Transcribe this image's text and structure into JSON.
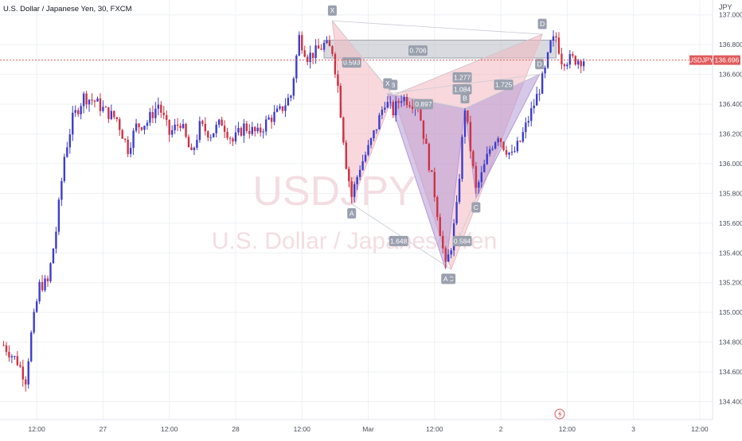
{
  "header": {
    "symbol_title": "U.S. Dollar / Japanese Yen, 30, FXCM"
  },
  "watermark": {
    "ticker": "USDJPY",
    "name": "U.S. Dollar / Japanese Yen"
  },
  "price_scale": {
    "currency": "JPY"
  },
  "last_price": {
    "symbol": "USDJPY",
    "value": "136.696",
    "price": 136.696
  },
  "colors": {
    "up": "#3d3dcc",
    "down": "#cc3344",
    "price_line": "#e05a5a",
    "grid": "#eef0f3",
    "pattern_fill_pink": "#f2b8bf",
    "pattern_fill_purple": "#b49ad6",
    "pattern_label": "#9aa0ae"
  },
  "chart_data": {
    "type": "candlestick",
    "title": "U.S. Dollar / Japanese Yen, 30, FXCM",
    "ylabel": "JPY",
    "ylim": [
      134.28,
      137.1
    ],
    "y_ticks": [
      "137.000",
      "136.800",
      "136.600",
      "136.400",
      "136.200",
      "136.000",
      "135.800",
      "135.600",
      "135.400",
      "135.200",
      "135.000",
      "134.800",
      "134.600",
      "134.400"
    ],
    "x_ticks": [
      "12:00",
      "27",
      "12:00",
      "28",
      "12:00",
      "Mar",
      "12:00",
      "2",
      "12:00",
      "3",
      "12:00"
    ],
    "bar_range": [
      0,
      210
    ],
    "x_tick_bars": [
      12,
      36,
      60,
      84,
      108,
      132,
      156,
      180,
      204,
      228,
      252
    ],
    "ohlc_anchors": [
      [
        0,
        134.78
      ],
      [
        5,
        134.67
      ],
      [
        8,
        134.55
      ],
      [
        10,
        134.85
      ],
      [
        13,
        135.18
      ],
      [
        16,
        135.2
      ],
      [
        19,
        135.55
      ],
      [
        22,
        136.05
      ],
      [
        25,
        136.3
      ],
      [
        29,
        136.45
      ],
      [
        33,
        136.42
      ],
      [
        37,
        136.35
      ],
      [
        41,
        136.3
      ],
      [
        45,
        136.1
      ],
      [
        48,
        136.25
      ],
      [
        52,
        136.28
      ],
      [
        56,
        136.4
      ],
      [
        60,
        136.2
      ],
      [
        64,
        136.28
      ],
      [
        68,
        136.05
      ],
      [
        71,
        136.25
      ],
      [
        75,
        136.2
      ],
      [
        79,
        136.28
      ],
      [
        83,
        136.15
      ],
      [
        87,
        136.25
      ],
      [
        92,
        136.2
      ],
      [
        96,
        136.3
      ],
      [
        100,
        136.35
      ],
      [
        104,
        136.46
      ],
      [
        107,
        136.85
      ],
      [
        110,
        136.72
      ],
      [
        113,
        136.75
      ],
      [
        116,
        136.8
      ],
      [
        119,
        136.76
      ],
      [
        121,
        136.52
      ],
      [
        124,
        136.0
      ],
      [
        126,
        135.78
      ],
      [
        129,
        135.98
      ],
      [
        132,
        136.1
      ],
      [
        135,
        136.25
      ],
      [
        138,
        136.42
      ],
      [
        141,
        136.35
      ],
      [
        144,
        136.45
      ],
      [
        147,
        136.42
      ],
      [
        150,
        136.4
      ],
      [
        153,
        136.1
      ],
      [
        156,
        135.8
      ],
      [
        158,
        135.55
      ],
      [
        160,
        135.3
      ],
      [
        162,
        135.45
      ],
      [
        164,
        135.7
      ],
      [
        167,
        136.38
      ],
      [
        169,
        136.1
      ],
      [
        171,
        135.82
      ],
      [
        173,
        135.92
      ],
      [
        176,
        136.1
      ],
      [
        179,
        136.2
      ],
      [
        181,
        136.12
      ],
      [
        184,
        136.05
      ],
      [
        187,
        136.15
      ],
      [
        190,
        136.3
      ],
      [
        193,
        136.45
      ],
      [
        196,
        136.62
      ],
      [
        198,
        136.8
      ],
      [
        200,
        136.85
      ],
      [
        202,
        136.7
      ]
    ],
    "harmonic_patterns": [
      {
        "points": {
          "X": [
            119,
            136.96
          ],
          "A": [
            126,
            135.73
          ],
          "B": [
            141,
            136.46
          ],
          "C": [
            162,
            135.29
          ],
          "D": [
            195,
            136.87
          ]
        },
        "ratios": [
          "0.593",
          "0.706",
          "1.648",
          "1.277"
        ]
      },
      {
        "points": {
          "X": [
            139,
            136.47
          ],
          "A": [
            160,
            135.29
          ],
          "B": [
            167,
            136.37
          ],
          "C": [
            171,
            135.77
          ],
          "D": [
            194,
            136.6
          ]
        },
        "ratios": [
          "0.897",
          "0.584",
          "1.725",
          "1.084"
        ]
      }
    ],
    "pattern_ratio_labels": [
      "0.593",
      "0.706",
      "1.277",
      "1.084",
      "1.725",
      "0.897",
      "1.648",
      "0.584"
    ],
    "resistance_zone": [
      136.71,
      136.83
    ],
    "grid": true
  }
}
